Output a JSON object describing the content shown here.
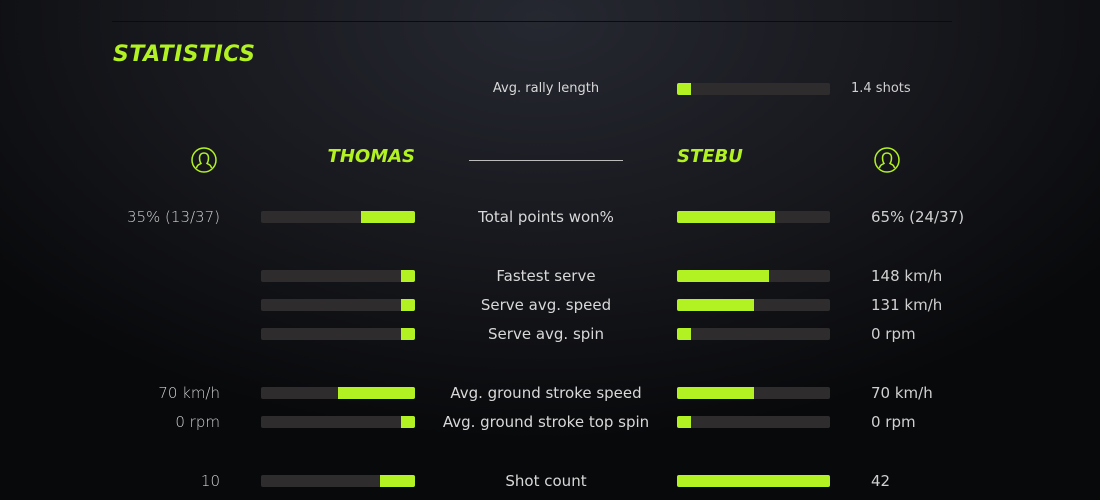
{
  "title": "STATISTICS",
  "accent": "#b2f223",
  "summary": {
    "label": "Avg. rally length",
    "value": "1.4 shots",
    "fill": 0.09
  },
  "players": {
    "left": {
      "name": "THOMAS",
      "icon": "user-circle-icon"
    },
    "right": {
      "name": "STEBU",
      "icon": "user-circle-icon"
    }
  },
  "rows": [
    {
      "label": "Total points won%",
      "left_value": "35% (13/37)",
      "right_value": "65% (24/37)",
      "left_fill": 0.35,
      "right_fill": 0.64
    },
    {
      "label": "Fastest serve",
      "left_value": "",
      "right_value": "148 km/h",
      "left_fill": 0.09,
      "right_fill": 0.6
    },
    {
      "label": "Serve avg. speed",
      "left_value": "",
      "right_value": "131 km/h",
      "left_fill": 0.09,
      "right_fill": 0.5
    },
    {
      "label": "Serve avg. spin",
      "left_value": "",
      "right_value": "0 rpm",
      "left_fill": 0.09,
      "right_fill": 0.09
    },
    {
      "label": "Avg. ground stroke speed",
      "left_value": "70 km/h",
      "right_value": "70 km/h",
      "left_fill": 0.5,
      "right_fill": 0.5
    },
    {
      "label": "Avg. ground stroke top spin",
      "left_value": "0 rpm",
      "right_value": "0 rpm",
      "left_fill": 0.09,
      "right_fill": 0.09
    },
    {
      "label": "Shot count",
      "left_value": "10",
      "right_value": "42",
      "left_fill": 0.23,
      "right_fill": 1.0
    }
  ]
}
